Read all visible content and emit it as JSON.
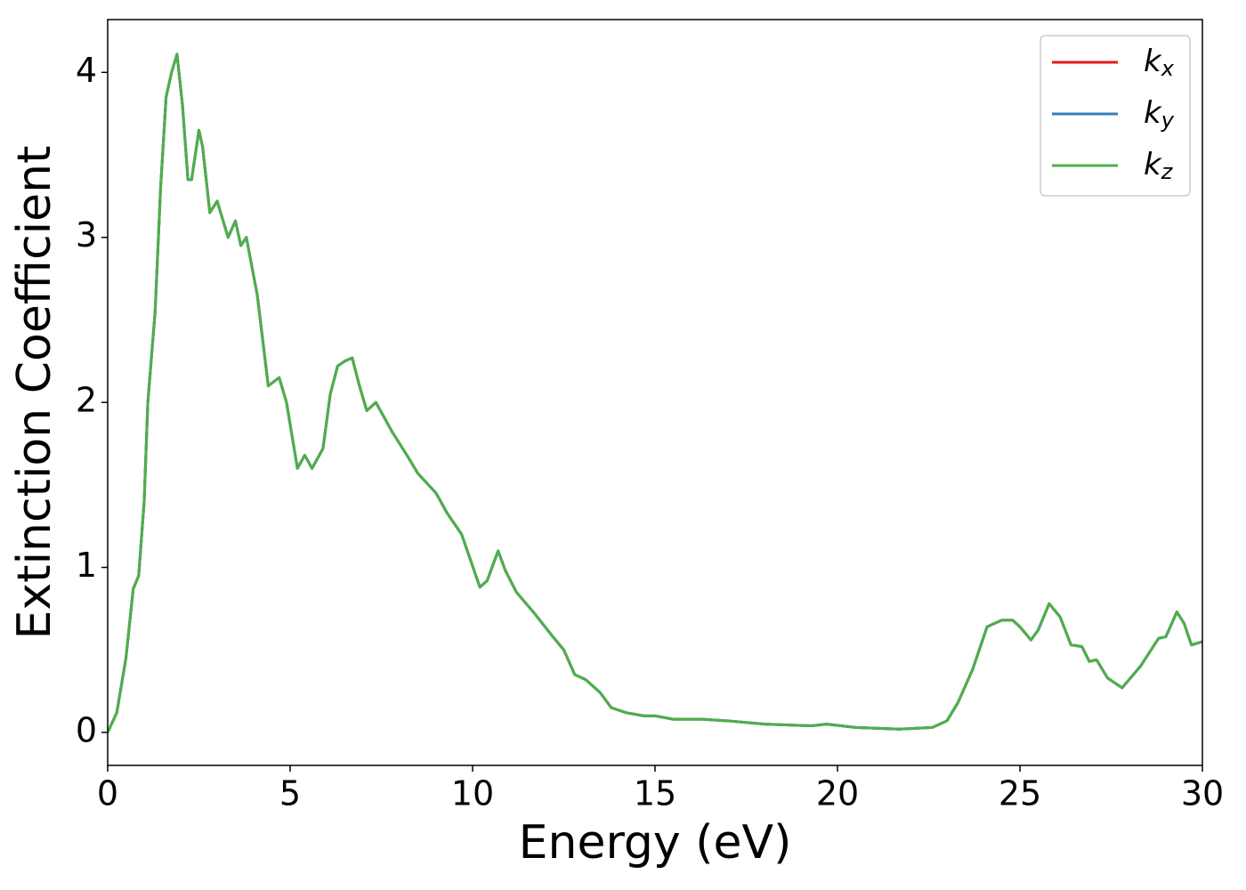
{
  "chart_data": {
    "type": "line",
    "xlabel": "Energy (eV)",
    "ylabel": "Extinction Coefficient",
    "x": [
      0,
      0.25,
      0.5,
      0.7,
      0.85,
      1.0,
      1.1,
      1.3,
      1.45,
      1.6,
      1.75,
      1.9,
      2.05,
      2.2,
      2.3,
      2.5,
      2.6,
      2.8,
      3.0,
      3.3,
      3.5,
      3.65,
      3.8,
      4.1,
      4.4,
      4.7,
      4.9,
      5.2,
      5.4,
      5.6,
      5.9,
      6.1,
      6.3,
      6.5,
      6.7,
      6.9,
      7.1,
      7.35,
      7.6,
      7.8,
      8.2,
      8.5,
      9.0,
      9.3,
      9.7,
      10.2,
      10.4,
      10.7,
      10.9,
      11.2,
      11.7,
      12.2,
      12.5,
      12.8,
      13.1,
      13.5,
      13.8,
      14.2,
      14.7,
      15.0,
      15.5,
      16.3,
      17.0,
      18.0,
      19.3,
      19.7,
      20.5,
      21.7,
      22.6,
      23.0,
      23.3,
      23.7,
      24.1,
      24.5,
      24.8,
      25.0,
      25.3,
      25.5,
      25.8,
      26.1,
      26.4,
      26.7,
      26.9,
      27.1,
      27.4,
      27.8,
      28.3,
      28.8,
      29.0,
      29.3,
      29.5,
      29.7,
      30
    ],
    "series": [
      {
        "name": "kx",
        "color": "#e41a1c",
        "values": [
          0,
          0.12,
          0.45,
          0.87,
          0.95,
          1.4,
          2.0,
          2.55,
          3.3,
          3.85,
          4.0,
          4.11,
          3.8,
          3.35,
          3.35,
          3.65,
          3.55,
          3.15,
          3.22,
          3.0,
          3.1,
          2.95,
          3.0,
          2.65,
          2.1,
          2.15,
          2.0,
          1.6,
          1.68,
          1.6,
          1.72,
          2.05,
          2.22,
          2.25,
          2.27,
          2.1,
          1.95,
          2.0,
          1.9,
          1.82,
          1.68,
          1.57,
          1.45,
          1.33,
          1.2,
          0.88,
          0.92,
          1.1,
          0.98,
          0.85,
          0.72,
          0.58,
          0.5,
          0.35,
          0.32,
          0.24,
          0.15,
          0.12,
          0.1,
          0.1,
          0.08,
          0.08,
          0.07,
          0.05,
          0.04,
          0.05,
          0.03,
          0.02,
          0.03,
          0.07,
          0.18,
          0.38,
          0.64,
          0.68,
          0.68,
          0.64,
          0.56,
          0.62,
          0.78,
          0.7,
          0.53,
          0.52,
          0.43,
          0.44,
          0.33,
          0.27,
          0.4,
          0.57,
          0.58,
          0.73,
          0.66,
          0.53,
          0.55
        ]
      },
      {
        "name": "ky",
        "color": "#377eb8",
        "values": [
          0,
          0.12,
          0.45,
          0.87,
          0.95,
          1.4,
          2.0,
          2.55,
          3.3,
          3.85,
          4.0,
          4.11,
          3.8,
          3.35,
          3.35,
          3.65,
          3.55,
          3.15,
          3.22,
          3.0,
          3.1,
          2.95,
          3.0,
          2.65,
          2.1,
          2.15,
          2.0,
          1.6,
          1.68,
          1.6,
          1.72,
          2.05,
          2.22,
          2.25,
          2.27,
          2.1,
          1.95,
          2.0,
          1.9,
          1.82,
          1.68,
          1.57,
          1.45,
          1.33,
          1.2,
          0.88,
          0.92,
          1.1,
          0.98,
          0.85,
          0.72,
          0.58,
          0.5,
          0.35,
          0.32,
          0.24,
          0.15,
          0.12,
          0.1,
          0.1,
          0.08,
          0.08,
          0.07,
          0.05,
          0.04,
          0.05,
          0.03,
          0.02,
          0.03,
          0.07,
          0.18,
          0.38,
          0.64,
          0.68,
          0.68,
          0.64,
          0.56,
          0.62,
          0.78,
          0.7,
          0.53,
          0.52,
          0.43,
          0.44,
          0.33,
          0.27,
          0.4,
          0.57,
          0.58,
          0.73,
          0.66,
          0.53,
          0.55
        ]
      },
      {
        "name": "kz",
        "color": "#4daf4a",
        "values": [
          0,
          0.12,
          0.45,
          0.87,
          0.95,
          1.4,
          2.0,
          2.55,
          3.3,
          3.85,
          4.0,
          4.11,
          3.8,
          3.35,
          3.35,
          3.65,
          3.55,
          3.15,
          3.22,
          3.0,
          3.1,
          2.95,
          3.0,
          2.65,
          2.1,
          2.15,
          2.0,
          1.6,
          1.68,
          1.6,
          1.72,
          2.05,
          2.22,
          2.25,
          2.27,
          2.1,
          1.95,
          2.0,
          1.9,
          1.82,
          1.68,
          1.57,
          1.45,
          1.33,
          1.2,
          0.88,
          0.92,
          1.1,
          0.98,
          0.85,
          0.72,
          0.58,
          0.5,
          0.35,
          0.32,
          0.24,
          0.15,
          0.12,
          0.1,
          0.1,
          0.08,
          0.08,
          0.07,
          0.05,
          0.04,
          0.05,
          0.03,
          0.02,
          0.03,
          0.07,
          0.18,
          0.38,
          0.64,
          0.68,
          0.68,
          0.64,
          0.56,
          0.62,
          0.78,
          0.7,
          0.53,
          0.52,
          0.43,
          0.44,
          0.33,
          0.27,
          0.4,
          0.57,
          0.58,
          0.73,
          0.66,
          0.53,
          0.55
        ]
      }
    ],
    "xlim": [
      0,
      30
    ],
    "xticks": [
      0,
      5,
      10,
      15,
      20,
      25,
      30
    ],
    "ylim": [
      -0.2,
      4.32
    ],
    "yticks": [
      0,
      1,
      2,
      3,
      4
    ],
    "grid": false,
    "legend": "upper right"
  }
}
